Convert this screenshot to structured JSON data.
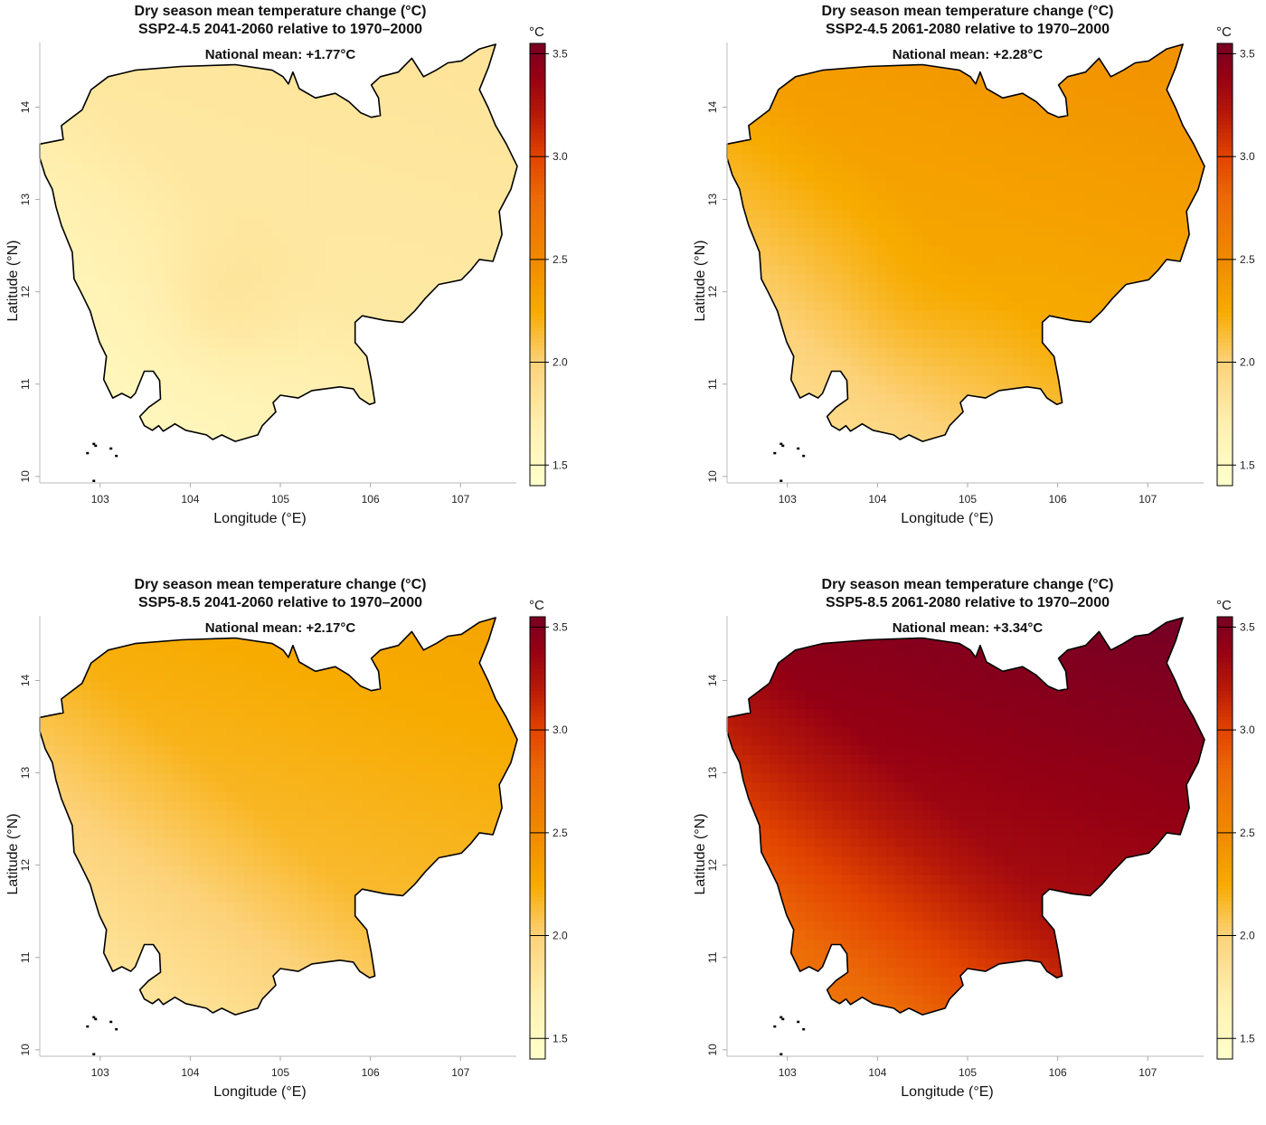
{
  "figure": {
    "panels": [
      {
        "title_line1": "Dry season mean temperature change (°C)",
        "title_line2": "SSP2-4.5 2041-2060 relative to 1970–2000",
        "national_mean_label": "National mean: +1.77°C",
        "national_mean": 1.77,
        "field": {
          "base": 1.77,
          "north_east": 0.05,
          "south_west": -0.2,
          "center_south": 0.1
        }
      },
      {
        "title_line1": "Dry season mean temperature change (°C)",
        "title_line2": "SSP2-4.5 2061-2080 relative to 1970–2000",
        "national_mean_label": "National mean: +2.28°C",
        "national_mean": 2.28,
        "field": {
          "base": 2.28,
          "north_east": 0.15,
          "south_west": -0.3,
          "center_south": 0.05
        }
      },
      {
        "title_line1": "Dry season mean temperature change (°C)",
        "title_line2": "SSP5-8.5 2041-2060 relative to 1970–2000",
        "national_mean_label": "National mean: +2.17°C",
        "national_mean": 2.17,
        "field": {
          "base": 2.17,
          "north_east": 0.12,
          "south_west": -0.3,
          "center_south": 0.0
        }
      },
      {
        "title_line1": "Dry season mean temperature change (°C)",
        "title_line2": "SSP5-8.5 2061-2080 relative to 1970–2000",
        "national_mean_label": "National mean: +3.34°C",
        "national_mean": 3.34,
        "field": {
          "base": 3.34,
          "north_east": 0.2,
          "south_west": -0.55,
          "center_south": 0.0
        }
      }
    ]
  },
  "chart_data": {
    "type": "heatmap",
    "title": "Dry season mean temperature change (°C)",
    "xlabel": "Longitude (°E)",
    "ylabel": "Latitude (°N)",
    "xlim": [
      102.33,
      107.62
    ],
    "ylim": [
      9.93,
      14.7
    ],
    "x_ticks": [
      103,
      104,
      105,
      106,
      107
    ],
    "y_ticks": [
      10,
      11,
      12,
      13,
      14
    ],
    "colorbar": {
      "unit_label": "°C",
      "range": [
        1.4,
        3.55
      ],
      "ticks": [
        1.5,
        2.0,
        2.5,
        3.0,
        3.5
      ],
      "tick_labels": [
        "1.5",
        "2.0",
        "2.5",
        "3.0",
        "3.5"
      ],
      "colors": [
        {
          "v": 1.4,
          "c": "#ffffcc"
        },
        {
          "v": 1.7,
          "c": "#fff0b0"
        },
        {
          "v": 2.0,
          "c": "#fcd27a"
        },
        {
          "v": 2.25,
          "c": "#f7ab00"
        },
        {
          "v": 2.5,
          "c": "#f08a00"
        },
        {
          "v": 2.8,
          "c": "#ec6a08"
        },
        {
          "v": 3.0,
          "c": "#e24400"
        },
        {
          "v": 3.2,
          "c": "#b81a08"
        },
        {
          "v": 3.4,
          "c": "#940014"
        },
        {
          "v": 3.55,
          "c": "#780024"
        }
      ]
    },
    "boundary_lonlat": [
      [
        102.33,
        13.6
      ],
      [
        102.59,
        13.65
      ],
      [
        102.57,
        13.8
      ],
      [
        102.8,
        13.97
      ],
      [
        102.9,
        14.19
      ],
      [
        103.09,
        14.33
      ],
      [
        103.39,
        14.4
      ],
      [
        103.9,
        14.44
      ],
      [
        104.5,
        14.46
      ],
      [
        104.91,
        14.4
      ],
      [
        105.03,
        14.33
      ],
      [
        105.09,
        14.25
      ],
      [
        105.14,
        14.38
      ],
      [
        105.21,
        14.2
      ],
      [
        105.39,
        14.1
      ],
      [
        105.61,
        14.15
      ],
      [
        105.76,
        14.06
      ],
      [
        105.89,
        13.94
      ],
      [
        106.01,
        13.89
      ],
      [
        106.11,
        13.91
      ],
      [
        106.09,
        14.1
      ],
      [
        106.01,
        14.24
      ],
      [
        106.11,
        14.33
      ],
      [
        106.31,
        14.38
      ],
      [
        106.46,
        14.53
      ],
      [
        106.59,
        14.33
      ],
      [
        106.73,
        14.4
      ],
      [
        106.86,
        14.48
      ],
      [
        107.01,
        14.5
      ],
      [
        107.21,
        14.63
      ],
      [
        107.39,
        14.68
      ],
      [
        107.31,
        14.43
      ],
      [
        107.21,
        14.19
      ],
      [
        107.31,
        13.99
      ],
      [
        107.39,
        13.8
      ],
      [
        107.51,
        13.6
      ],
      [
        107.63,
        13.36
      ],
      [
        107.56,
        13.11
      ],
      [
        107.43,
        12.87
      ],
      [
        107.46,
        12.62
      ],
      [
        107.36,
        12.33
      ],
      [
        107.21,
        12.35
      ],
      [
        107.11,
        12.23
      ],
      [
        107.01,
        12.13
      ],
      [
        106.76,
        12.08
      ],
      [
        106.61,
        11.93
      ],
      [
        106.49,
        11.79
      ],
      [
        106.36,
        11.67
      ],
      [
        106.16,
        11.69
      ],
      [
        105.91,
        11.74
      ],
      [
        105.83,
        11.67
      ],
      [
        105.83,
        11.45
      ],
      [
        105.96,
        11.3
      ],
      [
        106.01,
        11.05
      ],
      [
        106.05,
        10.8
      ],
      [
        105.99,
        10.78
      ],
      [
        105.88,
        10.85
      ],
      [
        105.81,
        10.95
      ],
      [
        105.66,
        10.97
      ],
      [
        105.35,
        10.93
      ],
      [
        105.2,
        10.85
      ],
      [
        105.0,
        10.88
      ],
      [
        104.92,
        10.8
      ],
      [
        104.95,
        10.7
      ],
      [
        104.8,
        10.55
      ],
      [
        104.75,
        10.45
      ],
      [
        104.5,
        10.38
      ],
      [
        104.35,
        10.45
      ],
      [
        104.25,
        10.4
      ],
      [
        104.18,
        10.45
      ],
      [
        103.95,
        10.5
      ],
      [
        103.83,
        10.57
      ],
      [
        103.8,
        10.55
      ],
      [
        103.7,
        10.49
      ],
      [
        103.65,
        10.55
      ],
      [
        103.58,
        10.5
      ],
      [
        103.49,
        10.55
      ],
      [
        103.44,
        10.65
      ],
      [
        103.54,
        10.75
      ],
      [
        103.67,
        10.84
      ],
      [
        103.66,
        11.04
      ],
      [
        103.59,
        11.14
      ],
      [
        103.49,
        11.14
      ],
      [
        103.39,
        10.9
      ],
      [
        103.34,
        10.85
      ],
      [
        103.24,
        10.9
      ],
      [
        103.14,
        10.85
      ],
      [
        103.09,
        10.95
      ],
      [
        103.04,
        11.05
      ],
      [
        103.07,
        11.3
      ],
      [
        103.02,
        11.4
      ],
      [
        102.99,
        11.46
      ],
      [
        102.94,
        11.62
      ],
      [
        102.89,
        11.79
      ],
      [
        102.79,
        11.99
      ],
      [
        102.71,
        12.14
      ],
      [
        102.69,
        12.43
      ],
      [
        102.57,
        12.72
      ],
      [
        102.51,
        12.92
      ],
      [
        102.47,
        13.11
      ],
      [
        102.39,
        13.26
      ],
      [
        102.33,
        13.45
      ]
    ],
    "islands_lonlat": [
      [
        102.93,
        10.35
      ],
      [
        102.95,
        10.33
      ],
      [
        102.86,
        10.25
      ],
      [
        103.12,
        10.3
      ],
      [
        103.18,
        10.22
      ],
      [
        102.93,
        9.95
      ]
    ],
    "panels": [
      {
        "scenario": "SSP2-4.5",
        "period": "2041-2060",
        "national_mean_c": 1.77
      },
      {
        "scenario": "SSP2-4.5",
        "period": "2061-2080",
        "national_mean_c": 2.28
      },
      {
        "scenario": "SSP5-8.5",
        "period": "2041-2060",
        "national_mean_c": 2.17
      },
      {
        "scenario": "SSP5-8.5",
        "period": "2061-2080",
        "national_mean_c": 3.34
      }
    ]
  }
}
